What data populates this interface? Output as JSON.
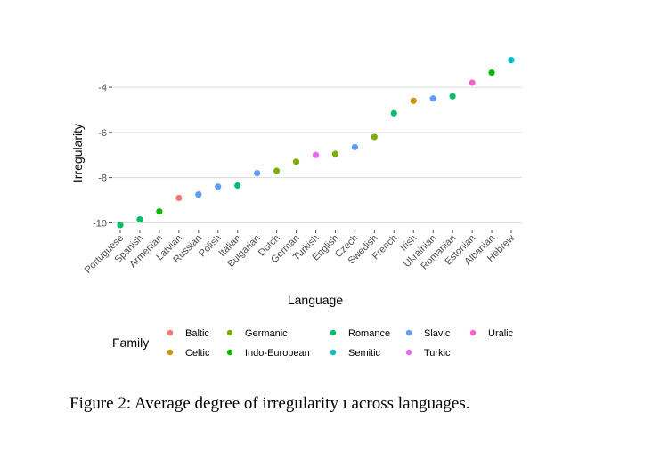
{
  "chart_data": {
    "type": "scatter",
    "xlabel": "Language",
    "ylabel": "Irregularity",
    "categories": [
      "Portuguese",
      "Spanish",
      "Armenian",
      "Latvian",
      "Russian",
      "Polish",
      "Italian",
      "Bulgarian",
      "Dutch",
      "German",
      "Turkish",
      "English",
      "Czech",
      "Swedish",
      "French",
      "Irish",
      "Ukrainian",
      "Romanian",
      "Estonian",
      "Albanian",
      "Hebrew"
    ],
    "values": [
      -10.1,
      -9.85,
      -9.5,
      -8.9,
      -8.75,
      -8.4,
      -8.35,
      -7.8,
      -7.7,
      -7.3,
      -7.0,
      -6.95,
      -6.65,
      -6.2,
      -5.15,
      -4.6,
      -4.5,
      -4.4,
      -3.8,
      -3.35,
      -2.8
    ],
    "family": [
      "Romance",
      "Romance",
      "Indo-European",
      "Baltic",
      "Slavic",
      "Slavic",
      "Romance",
      "Slavic",
      "Germanic",
      "Germanic",
      "Turkic",
      "Germanic",
      "Slavic",
      "Germanic",
      "Romance",
      "Celtic",
      "Slavic",
      "Romance",
      "Uralic",
      "Indo-European",
      "Semitic"
    ],
    "ylim": [
      -10.3,
      -2.5
    ],
    "yticks": [
      -10,
      -8,
      -6,
      -4
    ],
    "ytick_labels": [
      "-10",
      "-8",
      "-6",
      "-4"
    ],
    "legend": {
      "title": "Family",
      "entries": [
        {
          "name": "Baltic",
          "color": "#F8766D"
        },
        {
          "name": "Celtic",
          "color": "#CD9600"
        },
        {
          "name": "Germanic",
          "color": "#7CAE00"
        },
        {
          "name": "Indo-European",
          "color": "#0CB702"
        },
        {
          "name": "Romance",
          "color": "#00BE67"
        },
        {
          "name": "Semitic",
          "color": "#00BFC4"
        },
        {
          "name": "Slavic",
          "color": "#619CFF"
        },
        {
          "name": "Turkic",
          "color": "#E76BF3"
        },
        {
          "name": "Uralic",
          "color": "#FF61CC"
        }
      ],
      "placement": "bottom"
    },
    "grid": true
  },
  "caption": "Figure 2: Average degree of irregularity ι across languages."
}
